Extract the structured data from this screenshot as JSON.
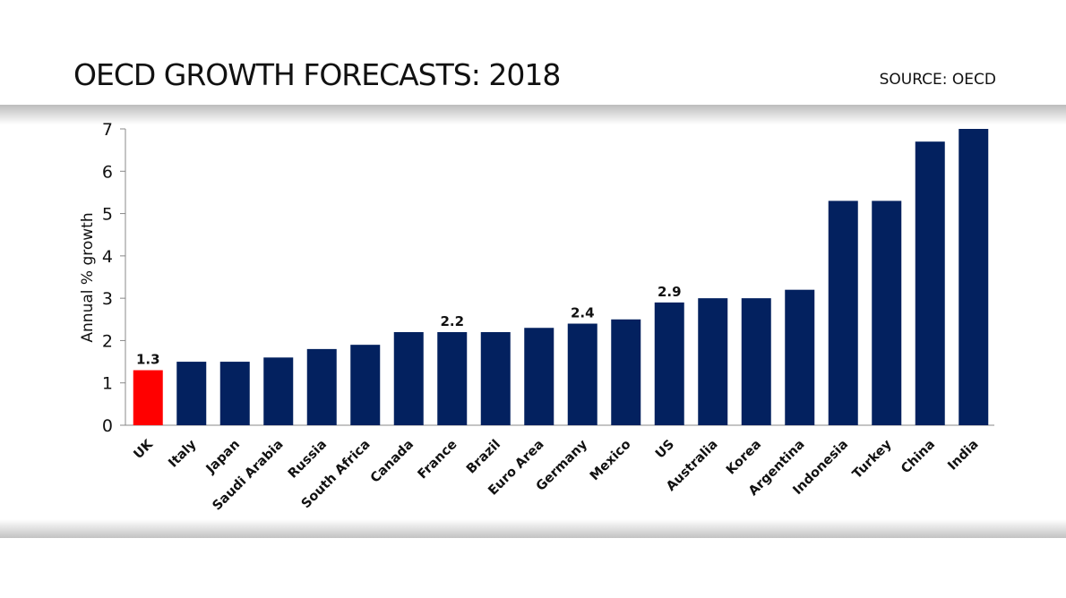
{
  "header": {
    "title": "OECD GROWTH FORECASTS: 2018",
    "source": "SOURCE: OECD"
  },
  "chart_data": {
    "type": "bar",
    "title": "OECD GROWTH FORECASTS: 2018",
    "xlabel": "",
    "ylabel": "Annual % growth",
    "ylim": [
      0,
      7
    ],
    "yticks": [
      0,
      1,
      2,
      3,
      4,
      5,
      6,
      7
    ],
    "categories": [
      "UK",
      "Italy",
      "Japan",
      "Saudi Arabia",
      "Russia",
      "South Africa",
      "Canada",
      "France",
      "Brazil",
      "Euro Area",
      "Germany",
      "Mexico",
      "US",
      "Australia",
      "Korea",
      "Argentina",
      "Indonesia",
      "Turkey",
      "China",
      "India"
    ],
    "values": [
      1.3,
      1.5,
      1.5,
      1.6,
      1.8,
      1.9,
      2.2,
      2.2,
      2.2,
      2.3,
      2.4,
      2.5,
      2.9,
      3.0,
      3.0,
      3.2,
      5.3,
      5.3,
      6.7,
      7.0
    ],
    "data_labels": {
      "UK": "1.3",
      "France": "2.2",
      "Germany": "2.4",
      "US": "2.9"
    },
    "colors": {
      "default": "#03215f",
      "highlight": "#ff0000"
    },
    "highlight": "UK"
  }
}
